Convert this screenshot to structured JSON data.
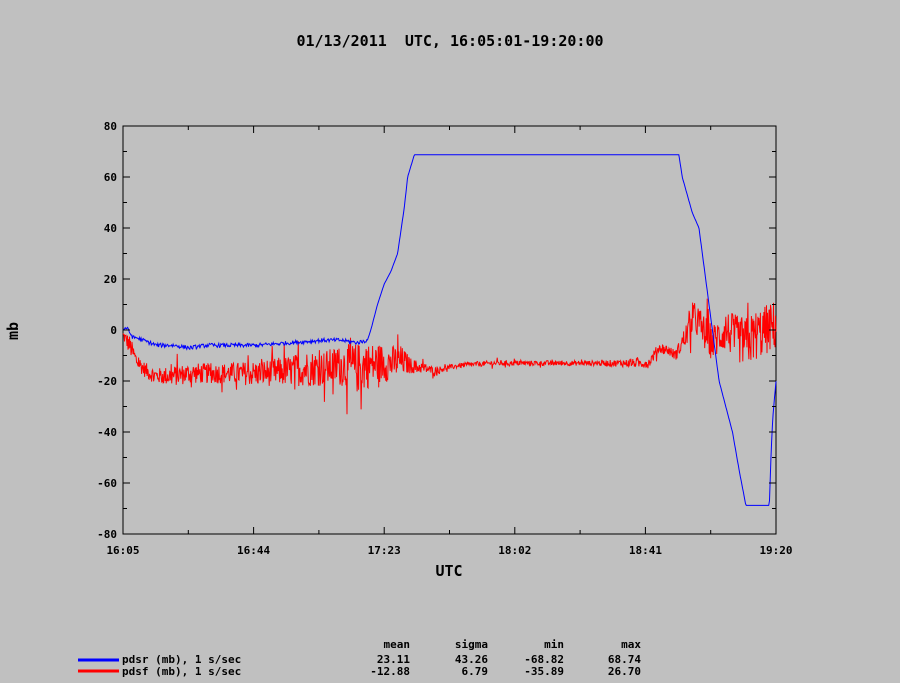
{
  "chart_data": {
    "type": "line",
    "title": "01/13/2011  UTC, 16:05:01-19:20:00",
    "xlabel": "UTC",
    "ylabel": "mb",
    "x_range_minutes": [
      0,
      195
    ],
    "x_ticks": [
      "16:05",
      "16:44",
      "17:23",
      "18:02",
      "18:41",
      "19:20"
    ],
    "ylim": [
      -80,
      80
    ],
    "y_ticks": [
      -80,
      -60,
      -40,
      -20,
      0,
      20,
      40,
      60,
      80
    ],
    "grid": false,
    "legend_position": "bottom-left",
    "series": [
      {
        "name": "pdsr (mb), 1 s/sec",
        "color": "#0000ff",
        "x_minutes": [
          0,
          1,
          2,
          3,
          4,
          6,
          10,
          15,
          20,
          25,
          30,
          40,
          50,
          60,
          65,
          70,
          73,
          74,
          76,
          78,
          80,
          82,
          84,
          85,
          87,
          88,
          90,
          100,
          120,
          140,
          160,
          166,
          167,
          170,
          172,
          174,
          176,
          178,
          180,
          182,
          184,
          186,
          190,
          193,
          193.5,
          194,
          195
        ],
        "y": [
          0,
          1,
          -1,
          -3,
          -3,
          -4,
          -6,
          -6,
          -7,
          -6,
          -6,
          -6,
          -5,
          -4,
          -4,
          -5,
          -4,
          0,
          10,
          18,
          23,
          30,
          48,
          60,
          68.7,
          68.7,
          68.7,
          68.7,
          68.7,
          68.7,
          68.7,
          68.7,
          60,
          46,
          40,
          20,
          0,
          -20,
          -30,
          -40,
          -55,
          -68.8,
          -68.8,
          -68.8,
          -50,
          -35,
          -20
        ]
      },
      {
        "name": "pdsf (mb), 1 s/sec",
        "color": "#ff0000",
        "x_minutes": [
          0,
          2,
          4,
          6,
          8,
          10,
          15,
          20,
          25,
          30,
          40,
          50,
          55,
          60,
          65,
          70,
          73,
          76,
          80,
          83,
          86,
          90,
          93,
          96,
          100,
          110,
          120,
          130,
          140,
          150,
          157,
          160,
          163,
          165,
          170,
          171,
          173,
          176,
          180,
          183,
          186,
          189,
          192,
          195
        ],
        "y": [
          -2,
          -6,
          -12,
          -15,
          -17,
          -18,
          -18,
          -17,
          -17,
          -17,
          -17,
          -16,
          -15,
          -15,
          -14,
          -15,
          -14,
          -13,
          -13,
          -12,
          -14,
          -15,
          -16,
          -15,
          -14,
          -13,
          -13,
          -13,
          -13,
          -13,
          -13,
          -7,
          -8,
          -10,
          3,
          5,
          0,
          -5,
          0,
          -3,
          -5,
          -2,
          0,
          2
        ],
        "noise_amplitude_mb": [
          2,
          4,
          3,
          3,
          3,
          3,
          4,
          4,
          4,
          4,
          5,
          6,
          7,
          7,
          8,
          10,
          9,
          8,
          7,
          6,
          3,
          2,
          1.5,
          1,
          1,
          1,
          1,
          1,
          1,
          1.5,
          2,
          2,
          2,
          2,
          6,
          7,
          7,
          7,
          8,
          9,
          10,
          10,
          10,
          10
        ],
        "stats": {
          "mean": "-12.88",
          "sigma": "6.79",
          "min": "-35.89",
          "max": "26.70"
        }
      }
    ],
    "stats_header": {
      "mean": "mean",
      "sigma": "sigma",
      "min": "min",
      "max": "max"
    },
    "stats_rows": [
      {
        "name": "pdsr (mb), 1 s/sec",
        "mean": "23.11",
        "sigma": "43.26",
        "min": "-68.82",
        "max": "68.74"
      },
      {
        "name": "pdsf (mb), 1 s/sec",
        "mean": "-12.88",
        "sigma": "6.79",
        "min": "-35.89",
        "max": "26.70"
      }
    ]
  }
}
